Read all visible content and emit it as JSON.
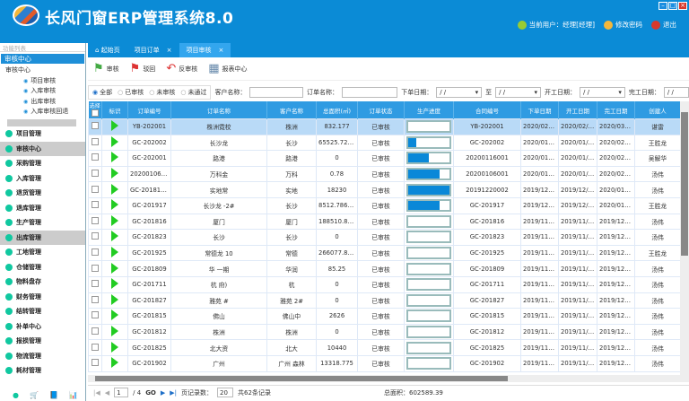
{
  "app": {
    "title": "长风门窗ERP管理系统8.0",
    "window_controls": [
      "minimize",
      "maximize",
      "close"
    ]
  },
  "user": {
    "current": "当前用户：经理[经理]",
    "change_password": "修改密码",
    "logout": "退出"
  },
  "sidebar": {
    "title": "功能列表",
    "section": "审核中心",
    "tree_root": "审核中心",
    "tree_items": [
      "项目审核",
      "入库审核",
      "出库审核",
      "入库审核回退"
    ],
    "menu": [
      {
        "label": "项目管理"
      },
      {
        "label": "审核中心",
        "selected": true
      },
      {
        "label": "采购管理"
      },
      {
        "label": "入库管理"
      },
      {
        "label": "退货管理"
      },
      {
        "label": "退库管理"
      },
      {
        "label": "生产管理"
      },
      {
        "label": "出库管理",
        "selected": true
      },
      {
        "label": "工地管理"
      },
      {
        "label": "仓储管理"
      },
      {
        "label": "物料盘存"
      },
      {
        "label": "财务管理"
      },
      {
        "label": "结转管理"
      },
      {
        "label": "补单中心"
      },
      {
        "label": "报损管理"
      },
      {
        "label": "物流管理"
      },
      {
        "label": "耗材管理"
      }
    ]
  },
  "tabs": [
    {
      "label": "起始页"
    },
    {
      "label": "项目订单",
      "close": "×"
    },
    {
      "label": "项目审核",
      "close": "×",
      "active": true
    }
  ],
  "toolbar": {
    "approve": "审核",
    "reject": "驳回",
    "unapprove": "反审核",
    "report": "报表中心"
  },
  "filter": {
    "radios": [
      "全部",
      "已审核",
      "未审核",
      "未通过"
    ],
    "selected": "全部",
    "customer_label": "客户名称：",
    "order_label": "订单名称：",
    "order_date_label": "下单日期：",
    "to_label": "至",
    "start_date_label": "开工日期：",
    "finish_date_label": "完工日期：",
    "date_placeholder": "/ /"
  },
  "table": {
    "columns": [
      "选择",
      "标识",
      "订单编号",
      "订单名称",
      "客户名称",
      "总面积(㎡)",
      "订单状态",
      "生产进度",
      "合同编号",
      "下单日期",
      "开工日期",
      "完工日期",
      "创建人"
    ],
    "rows": [
      {
        "no": "YB-202001",
        "name": "株洲霓校",
        "customer": "株洲",
        "area": "832.177",
        "status": "已审核",
        "progress": 0,
        "contract": "YB-202001",
        "order": "2020/02/28",
        "start": "2020/02/28",
        "finish": "2020/03/28",
        "creator": "谌雷"
      },
      {
        "no": "GC-202002",
        "name": "长沙龙",
        "customer": "长沙",
        "area": "65525.7200...",
        "status": "已审核",
        "progress": 20,
        "contract": "GC-202002",
        "order": "2020/01/19",
        "start": "2020/01/19",
        "finish": "2020/02/19",
        "creator": "王胜龙"
      },
      {
        "no": "GC-202001",
        "name": "路港",
        "customer": "路港",
        "area": "0",
        "status": "已审核",
        "progress": 50,
        "contract": "20200116001",
        "order": "2020/01/16",
        "start": "2020/01/16",
        "finish": "2020/02/16",
        "creator": "吴解华"
      },
      {
        "no": "20200106001",
        "name": "万科金",
        "customer": "万科",
        "area": "0.78",
        "status": "已审核",
        "progress": 75,
        "contract": "20200106001",
        "order": "2020/01/06",
        "start": "2020/01/06",
        "finish": "2020/02/06",
        "creator": "汤伟"
      },
      {
        "no": "GC-201817B",
        "name": "实地常",
        "customer": "实地",
        "area": "18230",
        "status": "已审核",
        "progress": 100,
        "contract": "20191220002",
        "order": "2019/12/20",
        "start": "2019/12/20",
        "finish": "2020/01/20",
        "creator": "汤伟"
      },
      {
        "no": "GC-201917",
        "name": "长沙龙 -2#",
        "customer": "长沙",
        "area": "8512.78600...",
        "status": "已审核",
        "progress": 75,
        "contract": "GC-201917",
        "order": "2019/12/17",
        "start": "2019/12/17",
        "finish": "2020/01/17",
        "creator": "王胜龙"
      },
      {
        "no": "GC-201816",
        "name": "厦门",
        "customer": "厦门",
        "area": "188510.818",
        "status": "已审核",
        "progress": 0,
        "contract": "GC-201816",
        "order": "2019/11/30",
        "start": "2019/11/30",
        "finish": "2019/12/30",
        "creator": "汤伟"
      },
      {
        "no": "GC-201823",
        "name": "长沙",
        "customer": "长沙",
        "area": "0",
        "status": "已审核",
        "progress": 0,
        "contract": "GC-201823",
        "order": "2019/11/27",
        "start": "2019/11/27",
        "finish": "2019/12/27",
        "creator": "汤伟"
      },
      {
        "no": "GC-201925",
        "name": "常德龙 10",
        "customer": "常德",
        "area": "266077.835...",
        "status": "已审核",
        "progress": 0,
        "contract": "GC-201925",
        "order": "2019/11/21",
        "start": "2019/11/21",
        "finish": "2019/12/21",
        "creator": "王胜龙"
      },
      {
        "no": "GC-201809",
        "name": "华 一期",
        "customer": "华润",
        "area": "85.25",
        "status": "已审核",
        "progress": 0,
        "contract": "GC-201809",
        "order": "2019/11/20",
        "start": "2019/11/20",
        "finish": "2019/12/20",
        "creator": "汤伟"
      },
      {
        "no": "GC-201711",
        "name": "杭 府)",
        "customer": "杭",
        "area": "0",
        "status": "已审核",
        "progress": 0,
        "contract": "GC-201711",
        "order": "2019/11/20",
        "start": "2019/11/20",
        "finish": "2019/12/20",
        "creator": "汤伟"
      },
      {
        "no": "GC-201827",
        "name": "雅苑 #",
        "customer": "雅苑 2#",
        "area": "0",
        "status": "已审核",
        "progress": 0,
        "contract": "GC-201827",
        "order": "2019/11/20",
        "start": "2019/11/20",
        "finish": "2019/12/20",
        "creator": "汤伟"
      },
      {
        "no": "GC-201815",
        "name": "佛山",
        "customer": "佛山中",
        "area": "2626",
        "status": "已审核",
        "progress": 0,
        "contract": "GC-201815",
        "order": "2019/11/20",
        "start": "2019/11/20",
        "finish": "2019/12/20",
        "creator": "汤伟"
      },
      {
        "no": "GC-201812",
        "name": "株洲",
        "customer": "株洲",
        "area": "0",
        "status": "已审核",
        "progress": 0,
        "contract": "GC-201812",
        "order": "2019/11/20",
        "start": "2019/11/20",
        "finish": "2019/12/20",
        "creator": "汤伟"
      },
      {
        "no": "GC-201825",
        "name": "北大资",
        "customer": "北大",
        "area": "10440",
        "status": "已审核",
        "progress": 0,
        "contract": "GC-201825",
        "order": "2019/11/19",
        "start": "2019/11/19",
        "finish": "2019/12/19",
        "creator": "汤伟"
      },
      {
        "no": "GC-201902",
        "name": "广州",
        "customer": "广州 森林",
        "area": "13318.775",
        "status": "已审核",
        "progress": 0,
        "contract": "GC-201902",
        "order": "2019/11/19",
        "start": "2019/11/19",
        "finish": "2019/12/19",
        "creator": "汤伟"
      }
    ]
  },
  "pager": {
    "page": "1",
    "total_pages": "/ 4",
    "go": "GO",
    "page_size_label": "页记录数：",
    "page_size": "20",
    "total_records": "共62条记录"
  },
  "summary": {
    "total_area": "总面积：602589.39"
  },
  "colors": {
    "brand": "#0b8bd6",
    "header": "#2f9be2",
    "progress": "#0a88d8",
    "flag": "#22cc22"
  }
}
